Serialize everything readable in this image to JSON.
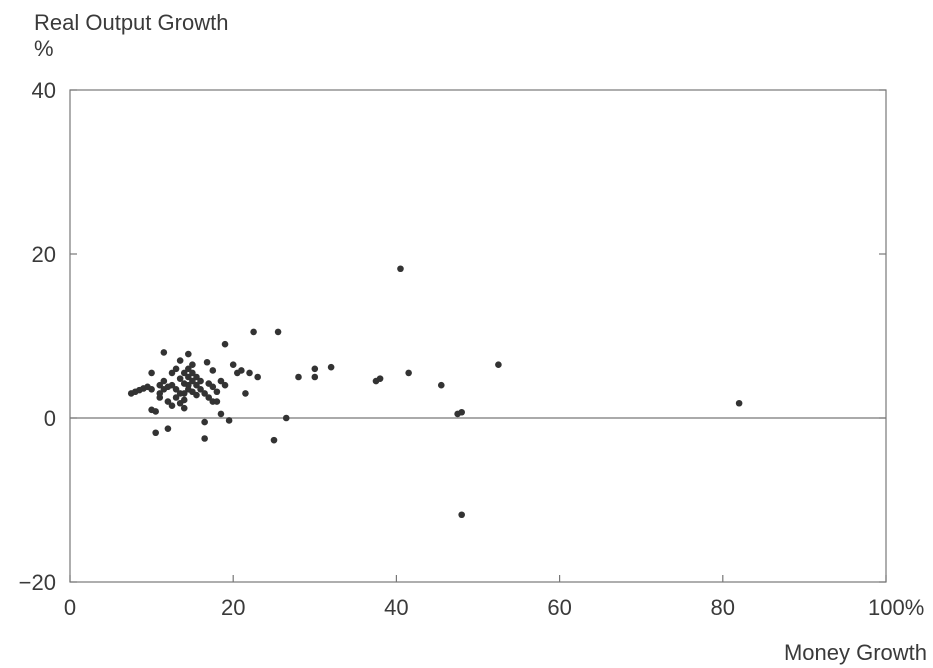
{
  "chart_data": {
    "type": "scatter",
    "ylabel": "Real Output Growth",
    "ylabel_unit": "%",
    "xlabel": "Money Growth",
    "xlim": [
      0,
      100
    ],
    "ylim": [
      -20,
      40
    ],
    "x_ticks": [
      0,
      20,
      40,
      60,
      80,
      100
    ],
    "x_tick_labels": [
      "0",
      "20",
      "40",
      "60",
      "80",
      "100%"
    ],
    "y_ticks": [
      -20,
      0,
      20,
      40
    ],
    "y_tick_labels": [
      "−20",
      "0",
      "20",
      "40"
    ],
    "zero_line": true,
    "grid": false,
    "point_color": "#333333",
    "series": [
      {
        "points": [
          [
            7.5,
            3.0
          ],
          [
            8.0,
            3.2
          ],
          [
            8.5,
            3.4
          ],
          [
            9.0,
            3.6
          ],
          [
            9.5,
            3.8
          ],
          [
            10.0,
            3.5
          ],
          [
            10.0,
            5.5
          ],
          [
            10.0,
            1.0
          ],
          [
            10.5,
            0.8
          ],
          [
            10.5,
            -1.8
          ],
          [
            11.0,
            2.5
          ],
          [
            11.0,
            4.0
          ],
          [
            11.0,
            3.0
          ],
          [
            11.5,
            8.0
          ],
          [
            11.5,
            4.5
          ],
          [
            11.5,
            3.5
          ],
          [
            12.0,
            2.0
          ],
          [
            12.0,
            -1.3
          ],
          [
            12.0,
            3.8
          ],
          [
            12.5,
            5.5
          ],
          [
            12.5,
            4.0
          ],
          [
            12.5,
            1.5
          ],
          [
            13.0,
            6.0
          ],
          [
            13.0,
            3.5
          ],
          [
            13.0,
            2.5
          ],
          [
            13.5,
            7.0
          ],
          [
            13.5,
            4.8
          ],
          [
            13.5,
            3.0
          ],
          [
            13.5,
            1.8
          ],
          [
            14.0,
            5.5
          ],
          [
            14.0,
            4.2
          ],
          [
            14.0,
            3.0
          ],
          [
            14.0,
            1.2
          ],
          [
            14.0,
            2.2
          ],
          [
            14.5,
            7.8
          ],
          [
            14.5,
            6.0
          ],
          [
            14.5,
            5.0
          ],
          [
            14.5,
            4.0
          ],
          [
            14.5,
            3.5
          ],
          [
            15.0,
            5.5
          ],
          [
            15.0,
            4.5
          ],
          [
            15.0,
            3.2
          ],
          [
            15.0,
            6.5
          ],
          [
            15.5,
            5.0
          ],
          [
            15.5,
            4.0
          ],
          [
            15.5,
            2.8
          ],
          [
            16.0,
            4.5
          ],
          [
            16.0,
            3.5
          ],
          [
            16.5,
            3.0
          ],
          [
            16.5,
            -0.5
          ],
          [
            16.5,
            -2.5
          ],
          [
            16.8,
            6.8
          ],
          [
            17.0,
            2.5
          ],
          [
            17.0,
            4.2
          ],
          [
            17.5,
            3.8
          ],
          [
            17.5,
            5.8
          ],
          [
            17.5,
            2.0
          ],
          [
            18.0,
            3.2
          ],
          [
            18.0,
            2.0
          ],
          [
            18.5,
            4.5
          ],
          [
            18.5,
            0.5
          ],
          [
            19.0,
            4.0
          ],
          [
            19.0,
            9.0
          ],
          [
            19.5,
            -0.3
          ],
          [
            20.0,
            6.5
          ],
          [
            20.5,
            5.5
          ],
          [
            21.0,
            5.8
          ],
          [
            21.5,
            3.0
          ],
          [
            22.0,
            5.5
          ],
          [
            22.5,
            10.5
          ],
          [
            23.0,
            5.0
          ],
          [
            25.0,
            -2.7
          ],
          [
            25.5,
            10.5
          ],
          [
            26.5,
            0.0
          ],
          [
            28.0,
            5.0
          ],
          [
            30.0,
            5.0
          ],
          [
            30.0,
            6.0
          ],
          [
            32.0,
            6.2
          ],
          [
            37.5,
            4.5
          ],
          [
            38.0,
            4.8
          ],
          [
            40.5,
            18.2
          ],
          [
            41.5,
            5.5
          ],
          [
            45.5,
            4.0
          ],
          [
            47.5,
            0.5
          ],
          [
            48.0,
            0.7
          ],
          [
            48.0,
            -11.8
          ],
          [
            52.5,
            6.5
          ],
          [
            82.0,
            1.8
          ]
        ]
      }
    ]
  }
}
